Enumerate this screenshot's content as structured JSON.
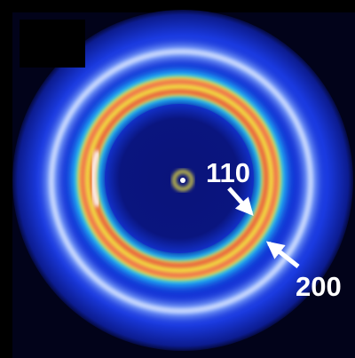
{
  "annotations": [
    {
      "label": "110"
    },
    {
      "label": "200"
    }
  ]
}
